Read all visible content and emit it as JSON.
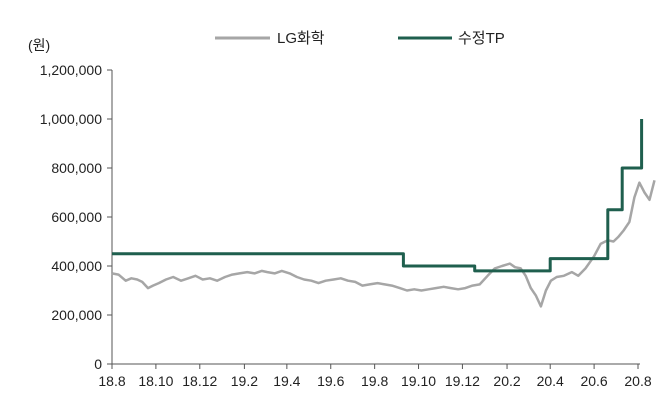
{
  "chart_data": {
    "type": "line",
    "unit_label": "(원)",
    "ylim": [
      0,
      1200000
    ],
    "y_ticks": [
      "0",
      "200,000",
      "400,000",
      "600,000",
      "800,000",
      "1,000,000",
      "1,200,000"
    ],
    "x_ticks": [
      "18.8",
      "18.10",
      "18.12",
      "19.2",
      "19.4",
      "19.6",
      "19.8",
      "19.10",
      "19.12",
      "20.2",
      "20.4",
      "20.6",
      "20.8"
    ],
    "legend_position": "top",
    "grid": false,
    "series": [
      {
        "name": "LG화학",
        "color": "#a6a6a6",
        "style": "line",
        "points": [
          [
            "2018-08-01",
            370000
          ],
          [
            "2018-08-10",
            365000
          ],
          [
            "2018-08-20",
            340000
          ],
          [
            "2018-08-28",
            350000
          ],
          [
            "2018-09-05",
            345000
          ],
          [
            "2018-09-12",
            335000
          ],
          [
            "2018-09-20",
            310000
          ],
          [
            "2018-09-27",
            320000
          ],
          [
            "2018-10-05",
            330000
          ],
          [
            "2018-10-15",
            345000
          ],
          [
            "2018-10-25",
            355000
          ],
          [
            "2018-11-05",
            340000
          ],
          [
            "2018-11-15",
            350000
          ],
          [
            "2018-11-25",
            360000
          ],
          [
            "2018-12-05",
            345000
          ],
          [
            "2018-12-15",
            350000
          ],
          [
            "2018-12-25",
            340000
          ],
          [
            "2019-01-05",
            355000
          ],
          [
            "2019-01-15",
            365000
          ],
          [
            "2019-01-25",
            370000
          ],
          [
            "2019-02-05",
            375000
          ],
          [
            "2019-02-15",
            370000
          ],
          [
            "2019-02-25",
            380000
          ],
          [
            "2019-03-05",
            375000
          ],
          [
            "2019-03-15",
            370000
          ],
          [
            "2019-03-25",
            380000
          ],
          [
            "2019-04-05",
            370000
          ],
          [
            "2019-04-15",
            355000
          ],
          [
            "2019-04-25",
            345000
          ],
          [
            "2019-05-05",
            340000
          ],
          [
            "2019-05-15",
            330000
          ],
          [
            "2019-05-25",
            340000
          ],
          [
            "2019-06-05",
            345000
          ],
          [
            "2019-06-15",
            350000
          ],
          [
            "2019-06-25",
            340000
          ],
          [
            "2019-07-05",
            335000
          ],
          [
            "2019-07-15",
            320000
          ],
          [
            "2019-07-25",
            325000
          ],
          [
            "2019-08-05",
            330000
          ],
          [
            "2019-08-15",
            325000
          ],
          [
            "2019-08-25",
            320000
          ],
          [
            "2019-09-05",
            310000
          ],
          [
            "2019-09-15",
            300000
          ],
          [
            "2019-09-25",
            305000
          ],
          [
            "2019-10-05",
            300000
          ],
          [
            "2019-10-15",
            305000
          ],
          [
            "2019-10-25",
            310000
          ],
          [
            "2019-11-05",
            315000
          ],
          [
            "2019-11-15",
            310000
          ],
          [
            "2019-11-25",
            305000
          ],
          [
            "2019-12-05",
            310000
          ],
          [
            "2019-12-15",
            320000
          ],
          [
            "2019-12-25",
            325000
          ],
          [
            "2020-01-05",
            360000
          ],
          [
            "2020-01-15",
            390000
          ],
          [
            "2020-01-25",
            400000
          ],
          [
            "2020-02-05",
            410000
          ],
          [
            "2020-02-12",
            395000
          ],
          [
            "2020-02-20",
            390000
          ],
          [
            "2020-02-27",
            360000
          ],
          [
            "2020-03-05",
            310000
          ],
          [
            "2020-03-12",
            280000
          ],
          [
            "2020-03-19",
            235000
          ],
          [
            "2020-03-26",
            300000
          ],
          [
            "2020-04-02",
            340000
          ],
          [
            "2020-04-10",
            355000
          ],
          [
            "2020-04-20",
            360000
          ],
          [
            "2020-05-01",
            375000
          ],
          [
            "2020-05-10",
            360000
          ],
          [
            "2020-05-20",
            390000
          ],
          [
            "2020-06-01",
            440000
          ],
          [
            "2020-06-10",
            490000
          ],
          [
            "2020-06-20",
            505000
          ],
          [
            "2020-06-28",
            500000
          ],
          [
            "2020-07-05",
            520000
          ],
          [
            "2020-07-12",
            545000
          ],
          [
            "2020-07-20",
            580000
          ],
          [
            "2020-07-27",
            680000
          ],
          [
            "2020-08-03",
            740000
          ],
          [
            "2020-08-10",
            700000
          ],
          [
            "2020-08-17",
            670000
          ],
          [
            "2020-08-24",
            750000
          ]
        ]
      },
      {
        "name": "수정TP",
        "color": "#1f5f4e",
        "style": "step",
        "points": [
          [
            "2018-08-01",
            450000
          ],
          [
            "2019-09-10",
            450000
          ],
          [
            "2019-09-10",
            400000
          ],
          [
            "2019-12-18",
            400000
          ],
          [
            "2019-12-18",
            380000
          ],
          [
            "2020-04-01",
            380000
          ],
          [
            "2020-04-01",
            430000
          ],
          [
            "2020-06-20",
            430000
          ],
          [
            "2020-06-20",
            630000
          ],
          [
            "2020-07-10",
            630000
          ],
          [
            "2020-07-10",
            800000
          ],
          [
            "2020-08-06",
            800000
          ],
          [
            "2020-08-06",
            1000000
          ]
        ]
      }
    ]
  }
}
